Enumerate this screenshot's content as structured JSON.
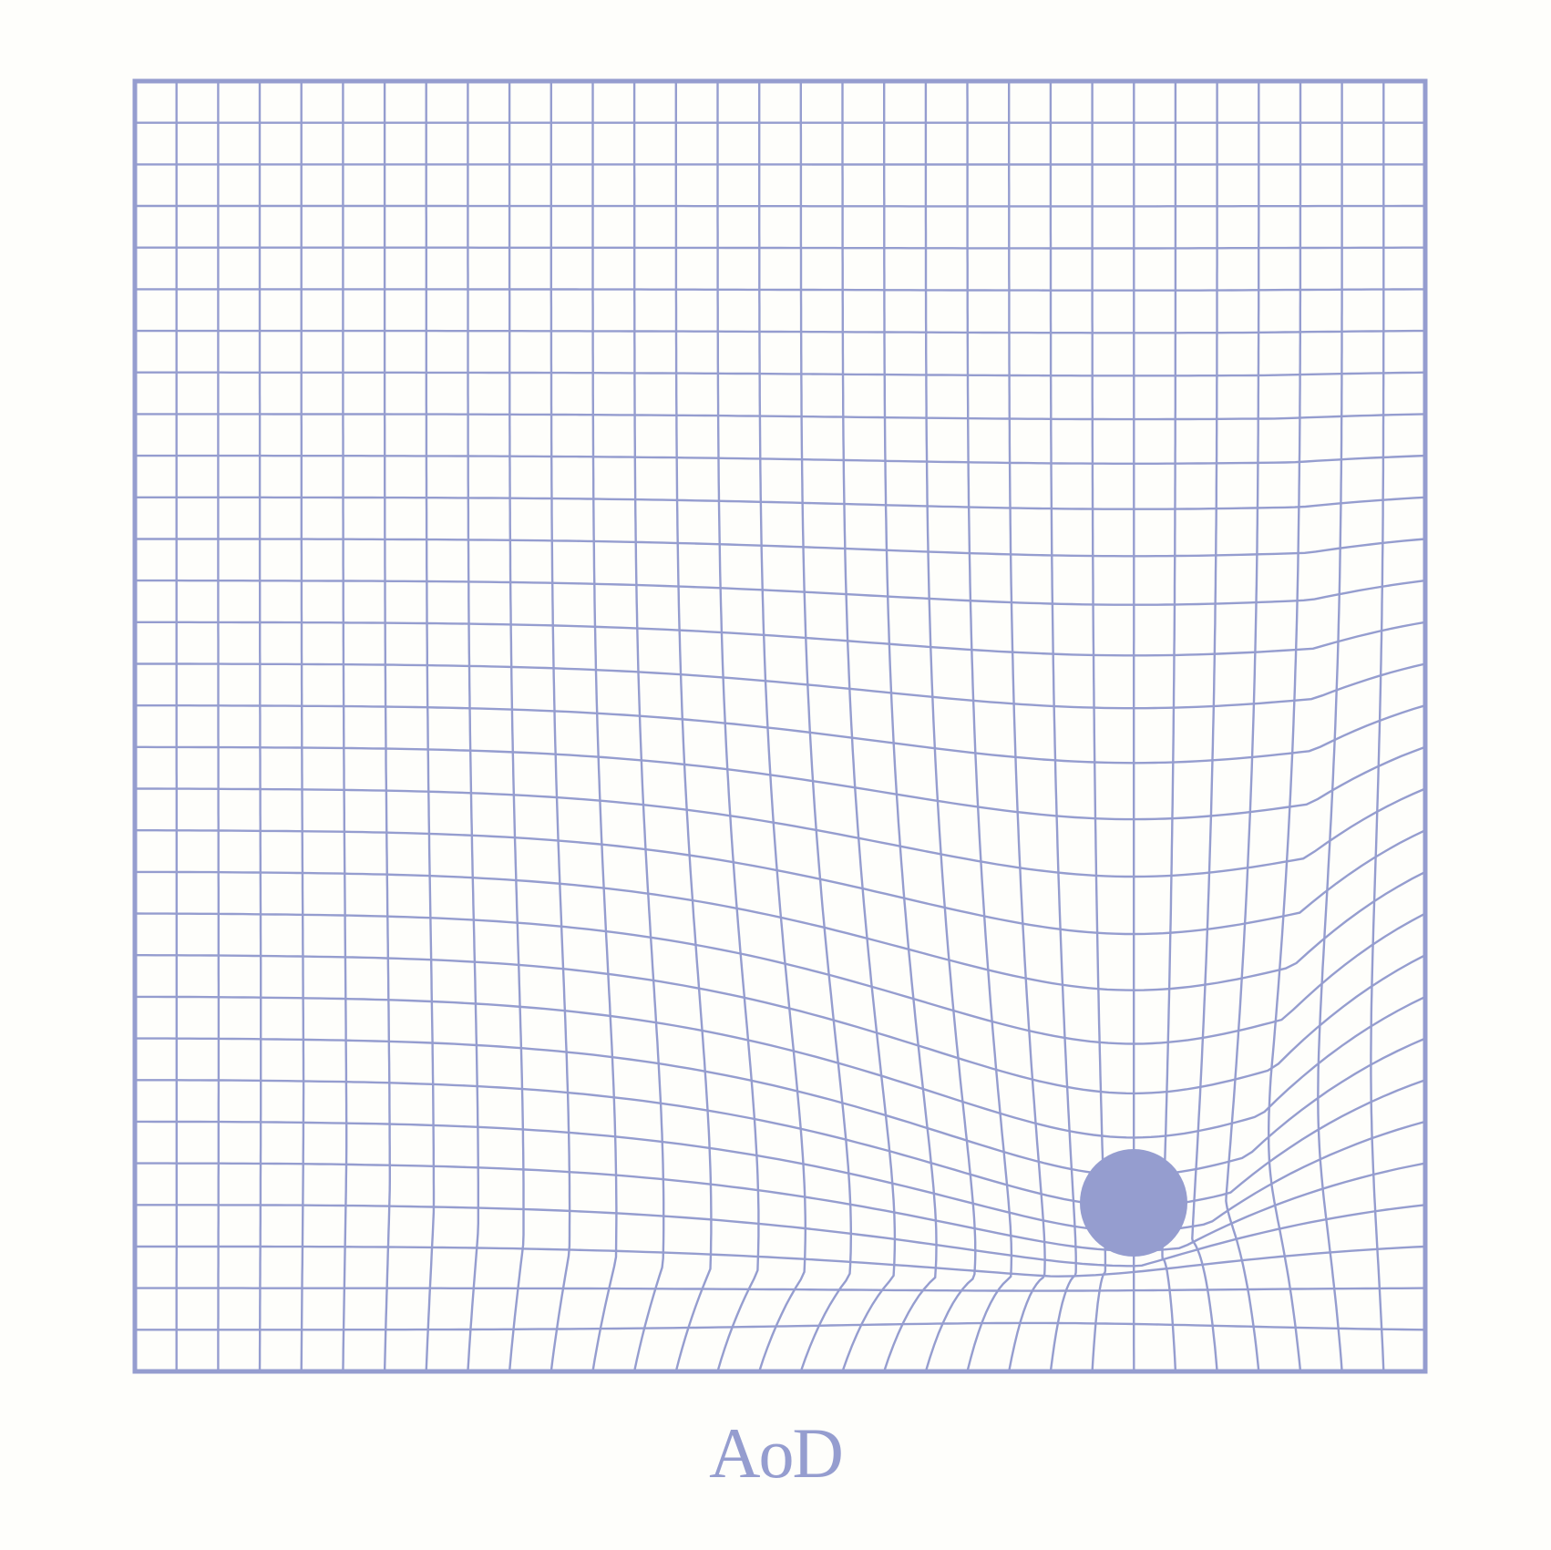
{
  "logo": {
    "text": "AoD"
  },
  "colors": {
    "line": "#959dcf",
    "background": "#fefefb",
    "mass": "#959dcf"
  },
  "grid": {
    "cells": 31
  },
  "warp": {
    "center": [
      0.774,
      0.871
    ],
    "strength": 0.1,
    "falloff": 0.21
  }
}
